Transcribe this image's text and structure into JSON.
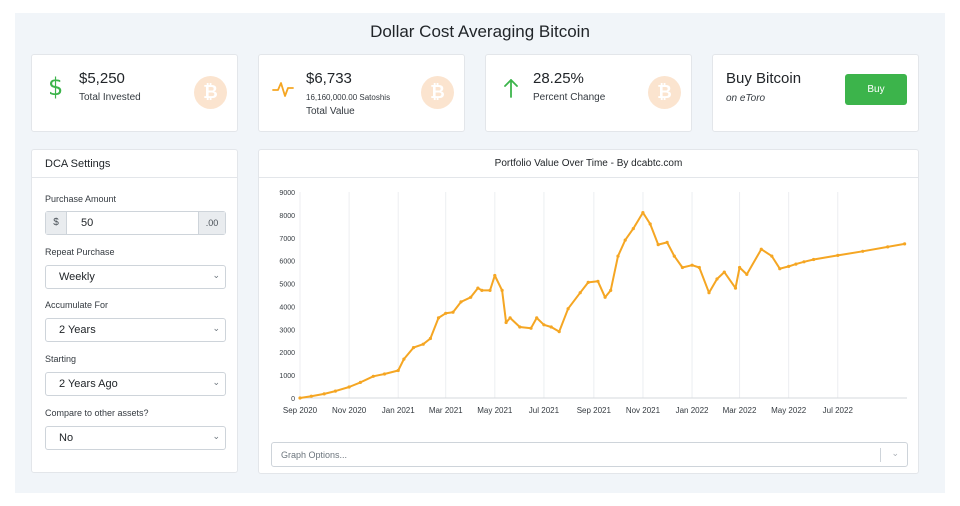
{
  "page": {
    "title": "Dollar Cost Averaging Bitcoin"
  },
  "stats": {
    "invested": {
      "value": "$5,250",
      "label": "Total Invested",
      "icon": "dollar-icon",
      "color": "#3cb44b"
    },
    "total_value": {
      "value": "$6,733",
      "satoshis": "16,160,000.00 Satoshis",
      "label": "Total Value",
      "icon": "pulse-icon",
      "color": "#f5a623"
    },
    "percent": {
      "value": "28.25%",
      "label": "Percent Change",
      "icon": "arrow-up-icon",
      "color": "#3cb44b"
    },
    "buy": {
      "title": "Buy Bitcoin",
      "subtitle": "on eToro",
      "button_label": "Buy",
      "color": "#3cb44b"
    },
    "btc_glyph": "₿"
  },
  "settings": {
    "header": "DCA Settings",
    "purchase_amount": {
      "label": "Purchase Amount",
      "prefix": "$",
      "value": "50",
      "suffix": ".00"
    },
    "repeat_purchase": {
      "label": "Repeat Purchase",
      "value": "Weekly"
    },
    "accumulate_for": {
      "label": "Accumulate For",
      "value": "2 Years"
    },
    "starting": {
      "label": "Starting",
      "value": "2 Years Ago"
    },
    "compare": {
      "label": "Compare to other assets?",
      "value": "No"
    }
  },
  "chart_panel": {
    "header": "Portfolio Value Over Time - By dcabtc.com",
    "graph_options_placeholder": "Graph Options...",
    "chevron": "⌄"
  },
  "chart_data": {
    "type": "line",
    "title": "Portfolio Value Over Time - By dcabtc.com",
    "xlabel": "",
    "ylabel": "",
    "ylim": [
      0,
      9000
    ],
    "y_ticks": [
      "0",
      "1000",
      "2000",
      "3000",
      "4000",
      "5000",
      "6000",
      "7000",
      "8000",
      "9000"
    ],
    "x_ticks": [
      "Sep 2020",
      "Nov 2020",
      "Jan 2021",
      "Mar 2021",
      "May 2021",
      "Jul 2021",
      "Sep 2021",
      "Nov 2021",
      "Jan 2022",
      "Mar 2022",
      "May 2022",
      "Jul 2022"
    ],
    "x_domain": [
      "2020-09-01",
      "2022-09-25"
    ],
    "grid": "vertical",
    "line_color": "#f5a623",
    "series": [
      {
        "x": [
          "2020-09-01",
          "2020-09-15",
          "2020-10-01",
          "2020-10-15",
          "2020-11-01",
          "2020-11-15",
          "2020-12-01",
          "2020-12-15",
          "2021-01-01",
          "2021-01-08",
          "2021-01-20",
          "2021-02-01",
          "2021-02-10",
          "2021-02-20",
          "2021-03-01",
          "2021-03-10",
          "2021-03-20",
          "2021-04-01",
          "2021-04-10",
          "2021-04-15",
          "2021-04-25",
          "2021-05-01",
          "2021-05-10",
          "2021-05-15",
          "2021-05-20",
          "2021-06-01",
          "2021-06-15",
          "2021-06-22",
          "2021-07-01",
          "2021-07-10",
          "2021-07-20",
          "2021-07-31",
          "2021-08-15",
          "2021-08-25",
          "2021-09-06",
          "2021-09-15",
          "2021-09-22",
          "2021-10-01",
          "2021-10-10",
          "2021-10-20",
          "2021-11-01",
          "2021-11-10",
          "2021-11-20",
          "2021-12-01",
          "2021-12-10",
          "2021-12-20",
          "2022-01-01",
          "2022-01-10",
          "2022-01-22",
          "2022-02-01",
          "2022-02-10",
          "2022-02-24",
          "2022-03-01",
          "2022-03-10",
          "2022-03-28",
          "2022-04-10",
          "2022-04-20",
          "2022-05-01",
          "2022-05-10",
          "2022-05-20",
          "2022-06-01",
          "2022-07-01",
          "2022-08-01",
          "2022-09-01",
          "2022-09-22"
        ],
        "y": [
          0,
          80,
          180,
          300,
          480,
          680,
          950,
          1050,
          1200,
          1700,
          2200,
          2350,
          2600,
          3500,
          3700,
          3750,
          4200,
          4400,
          4800,
          4700,
          4700,
          5350,
          4700,
          3300,
          3500,
          3100,
          3050,
          3500,
          3200,
          3100,
          2900,
          3900,
          4600,
          5050,
          5100,
          4400,
          4700,
          6200,
          6900,
          7400,
          8100,
          7600,
          6700,
          6800,
          6200,
          5700,
          5800,
          5700,
          4600,
          5200,
          5500,
          4800,
          5700,
          5400,
          6500,
          6200,
          5650,
          5750,
          5850,
          5950,
          6050,
          6230,
          6410,
          6600,
          6733
        ]
      }
    ]
  }
}
